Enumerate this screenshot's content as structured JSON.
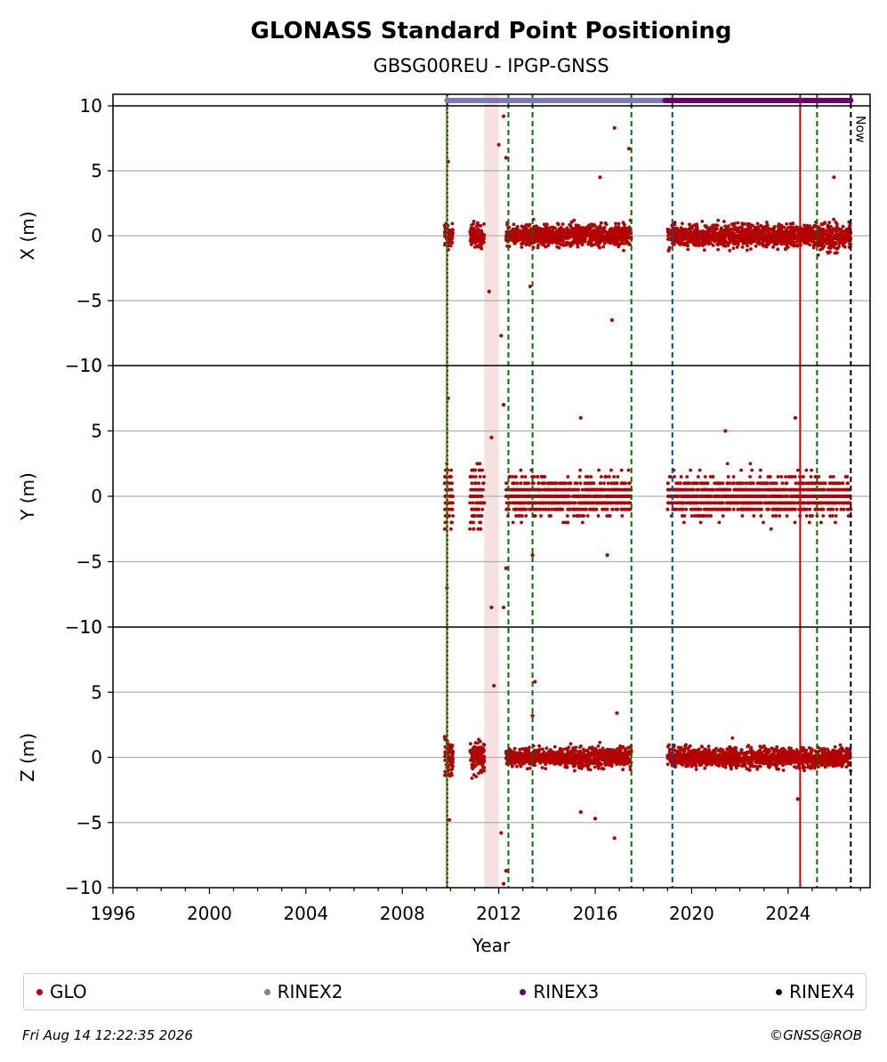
{
  "title": "GLONASS Standard Point Positioning",
  "subtitle": "GBSG00REU - IPGP-GNSS",
  "footer": {
    "date": "Fri Aug 14 12:22:35 2026",
    "credit": "©GNSS@ROB"
  },
  "legend": [
    {
      "label": "GLO",
      "color": "#b30000"
    },
    {
      "label": "RINEX2",
      "color": "#7b7bb5"
    },
    {
      "label": "RINEX3",
      "color": "#6b006b"
    },
    {
      "label": "RINEX4",
      "color": "#2a0018"
    }
  ],
  "chart_data": {
    "type": "scatter",
    "xlabel": "Year",
    "xlim": [
      1996,
      2027.4
    ],
    "xticks": [
      "1996",
      "2000",
      "2004",
      "2008",
      "2012",
      "2016",
      "2020",
      "2024"
    ],
    "ylim": [
      -10,
      10
    ],
    "yticks": [
      "10",
      "5",
      "0",
      "−5",
      "−10"
    ],
    "grid": "horizontal",
    "legend_position": "bottom",
    "now_label": "Now",
    "panels": [
      {
        "ylabel": "X (m)",
        "spread": [
          0.7,
          0.7,
          0.6,
          0.7,
          0.7,
          0.8
        ]
      },
      {
        "ylabel": "Y (m)",
        "spread": [
          2.2,
          2.2,
          1.2,
          1.2,
          1.2,
          1.2
        ]
      },
      {
        "ylabel": "Z (m)",
        "spread": [
          1.2,
          0.9,
          0.5,
          0.6,
          0.6,
          0.6
        ]
      }
    ],
    "data_segments": [
      {
        "start": 2009.75,
        "end": 2010.1,
        "density": 80
      },
      {
        "start": 2010.8,
        "end": 2011.4,
        "density": 120
      },
      {
        "start": 2012.3,
        "end": 2014.5,
        "density": 420
      },
      {
        "start": 2014.5,
        "end": 2017.5,
        "density": 520
      },
      {
        "start": 2019.0,
        "end": 2024.5,
        "density": 950
      },
      {
        "start": 2024.5,
        "end": 2026.6,
        "density": 380
      }
    ],
    "outliers": {
      "X": [
        [
          2009.9,
          5.7
        ],
        [
          2012.0,
          7.0
        ],
        [
          2012.2,
          9.2
        ],
        [
          2012.3,
          6.0
        ],
        [
          2016.8,
          8.3
        ],
        [
          2017.4,
          6.7
        ],
        [
          2016.7,
          -6.5
        ],
        [
          2012.1,
          -7.7
        ],
        [
          2011.6,
          -4.3
        ],
        [
          2013.3,
          -3.9
        ],
        [
          2025.9,
          4.5
        ],
        [
          2016.2,
          4.5
        ]
      ],
      "Y": [
        [
          2009.9,
          7.5
        ],
        [
          2009.85,
          -7.0
        ],
        [
          2012.2,
          7.0
        ],
        [
          2012.3,
          -5.5
        ],
        [
          2011.7,
          -8.5
        ],
        [
          2012.2,
          -8.5
        ],
        [
          2011.7,
          4.5
        ],
        [
          2015.4,
          6.0
        ],
        [
          2024.3,
          6.0
        ],
        [
          2021.4,
          5.0
        ],
        [
          2013.4,
          -4.5
        ],
        [
          2016.5,
          -4.5
        ]
      ],
      "Z": [
        [
          2009.95,
          -4.8
        ],
        [
          2011.8,
          5.5
        ],
        [
          2012.1,
          -5.8
        ],
        [
          2012.2,
          -9.7
        ],
        [
          2012.3,
          -8.7
        ],
        [
          2013.5,
          5.8
        ],
        [
          2013.4,
          3.2
        ],
        [
          2015.4,
          -4.2
        ],
        [
          2016.8,
          -6.2
        ],
        [
          2016.0,
          -4.7
        ],
        [
          2024.4,
          -3.2
        ],
        [
          2016.9,
          3.4
        ]
      ]
    },
    "shaded_span": {
      "start": 2011.4,
      "end": 2012.0,
      "color": "#f7e0e0"
    },
    "vertical_lines": [
      {
        "x": 2009.85,
        "color": "#00a000",
        "style": "solid"
      },
      {
        "x": 2009.87,
        "color": "#b30000",
        "style": "dotted"
      },
      {
        "x": 2012.4,
        "color": "#007000",
        "style": "dashed"
      },
      {
        "x": 2013.4,
        "color": "#007000",
        "style": "dashed"
      },
      {
        "x": 2017.5,
        "color": "#007000",
        "style": "dashed"
      },
      {
        "x": 2019.2,
        "color": "#0050a0",
        "style": "dashed"
      },
      {
        "x": 2024.5,
        "color": "#cc0000",
        "style": "solid"
      },
      {
        "x": 2025.2,
        "color": "#007000",
        "style": "dashed"
      },
      {
        "x": 2026.6,
        "color": "#000000",
        "style": "dashed"
      }
    ],
    "rinex_bars": [
      {
        "name": "RINEX2",
        "start": 2009.85,
        "end": 2026.6,
        "color": "#7b7bb5"
      },
      {
        "name": "RINEX3",
        "start": 2018.9,
        "end": 2026.6,
        "color": "#6b006b"
      }
    ],
    "series": [
      {
        "name": "GLO",
        "color": "#b30000"
      }
    ]
  }
}
